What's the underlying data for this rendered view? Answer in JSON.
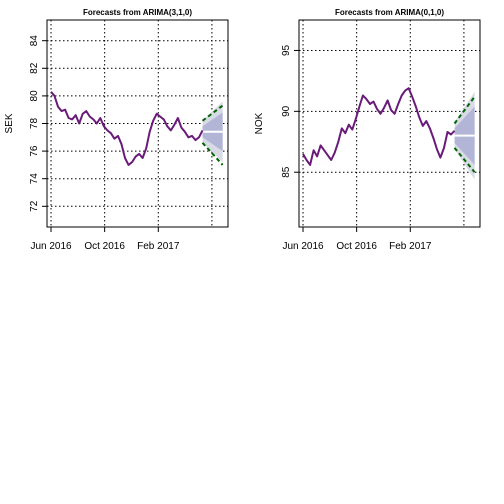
{
  "chart_data": [
    {
      "type": "line",
      "title": "Forecasts from ARIMA(3,1,0)",
      "ylabel": "SEK",
      "xlabel": "",
      "ylim": [
        70.5,
        85.5
      ],
      "yticks": [
        72,
        74,
        76,
        78,
        80,
        82,
        84
      ],
      "x_tick_labels": [
        "Jun 2016",
        "Oct 2016",
        "Feb 2017"
      ],
      "x_tick_months": [
        0,
        4,
        8
      ],
      "x_range_months": [
        -0.3,
        13.2
      ],
      "grid": true,
      "colors": {
        "series": "#6a1b7a",
        "band80": "#b3b5d6",
        "band95": "#d8dbe6",
        "mean": "#ffffff",
        "dashed": "#006400"
      },
      "series": [
        {
          "values": [
            80.3,
            80.0,
            79.2,
            78.9,
            79.0,
            78.4,
            78.3,
            78.6,
            78.0,
            78.7,
            78.9,
            78.5,
            78.3,
            78.0,
            78.4,
            77.8,
            77.5,
            77.3,
            76.9,
            77.1,
            76.5,
            75.5,
            75.0,
            75.2,
            75.6,
            75.8,
            75.5,
            76.2,
            77.4,
            78.2,
            78.7,
            78.5,
            78.3,
            77.8,
            77.5,
            77.9,
            78.4,
            77.7,
            77.4,
            77.0,
            77.1,
            76.8,
            77.0,
            77.5
          ]
        }
      ],
      "forecast": {
        "x_months": [
          11.3,
          12.8
        ],
        "mean": [
          77.4,
          77.4
        ],
        "lo80": [
          77.0,
          76.0
        ],
        "hi80": [
          77.8,
          78.8
        ],
        "lo95": [
          76.6,
          75.2
        ],
        "hi95": [
          78.2,
          79.6
        ],
        "dash_lo": [
          76.6,
          75.0
        ],
        "dash_hi": [
          78.2,
          79.3
        ]
      }
    },
    {
      "type": "line",
      "title": "Forecasts from ARIMA(0,1,0)",
      "ylabel": "NOK",
      "xlabel": "",
      "ylim": [
        80.5,
        97.5
      ],
      "yticks": [
        85,
        90,
        95
      ],
      "x_tick_labels": [
        "Jun 2016",
        "Oct 2016",
        "Feb 2017"
      ],
      "x_tick_months": [
        0,
        4,
        8
      ],
      "x_range_months": [
        -0.3,
        13.2
      ],
      "grid": true,
      "colors": {
        "series": "#6a1b7a",
        "band80": "#b3b5d6",
        "band95": "#d8dbe6",
        "mean": "#ffffff",
        "dashed": "#006400"
      },
      "series": [
        {
          "values": [
            86.5,
            86.0,
            85.6,
            86.8,
            86.3,
            87.2,
            86.8,
            86.4,
            86.0,
            86.6,
            87.5,
            88.6,
            88.2,
            88.9,
            88.5,
            89.4,
            90.4,
            91.3,
            91.0,
            90.6,
            90.8,
            90.2,
            89.8,
            90.3,
            90.9,
            90.1,
            89.8,
            90.6,
            91.3,
            91.7,
            91.9,
            91.2,
            90.4,
            89.5,
            88.8,
            89.2,
            88.6,
            87.8,
            86.9,
            86.2,
            87.0,
            88.3,
            88.1,
            88.4
          ]
        }
      ],
      "forecast": {
        "x_months": [
          11.3,
          12.8
        ],
        "mean": [
          88.0,
          88.0
        ],
        "lo80": [
          87.4,
          85.6
        ],
        "hi80": [
          88.6,
          90.4
        ],
        "lo95": [
          86.9,
          84.4
        ],
        "hi95": [
          89.1,
          91.6
        ],
        "dash_lo": [
          87.0,
          85.0
        ],
        "dash_hi": [
          89.0,
          91.2
        ]
      }
    }
  ]
}
